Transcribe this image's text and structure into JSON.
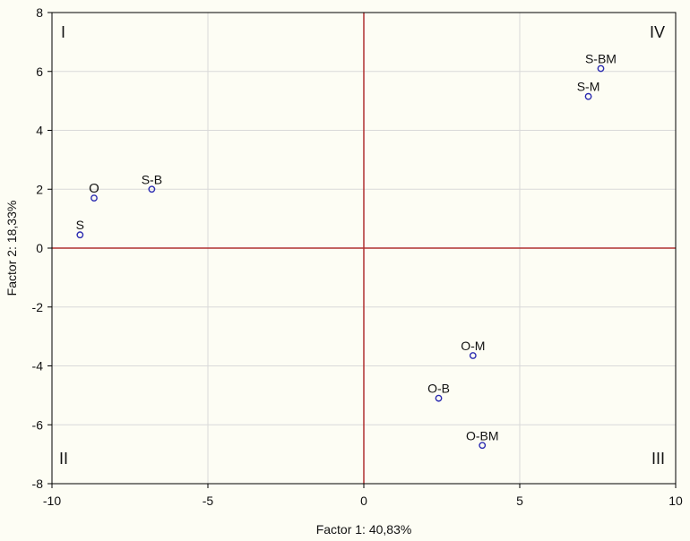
{
  "chart_data": {
    "type": "scatter",
    "xlabel": "Factor 1: 40,83%",
    "ylabel": "Factor 2: 18,33%",
    "xlim": [
      -10,
      10
    ],
    "ylim": [
      -8,
      8
    ],
    "x_ticks": [
      -10,
      -5,
      0,
      5,
      10
    ],
    "y_ticks": [
      -8,
      -6,
      -4,
      -2,
      0,
      2,
      4,
      6,
      8
    ],
    "grid": true,
    "reference_lines": {
      "x": 0,
      "y": 0,
      "color": "#b03030"
    },
    "points": [
      {
        "label": "S",
        "x": -9.1,
        "y": 0.45
      },
      {
        "label": "O",
        "x": -8.65,
        "y": 1.7
      },
      {
        "label": "S-B",
        "x": -6.8,
        "y": 2.0
      },
      {
        "label": "S-BM",
        "x": 7.6,
        "y": 6.1
      },
      {
        "label": "S-M",
        "x": 7.2,
        "y": 5.15
      },
      {
        "label": "O-M",
        "x": 3.5,
        "y": -3.65
      },
      {
        "label": "O-B",
        "x": 2.4,
        "y": -5.1
      },
      {
        "label": "O-BM",
        "x": 3.8,
        "y": -6.7
      }
    ],
    "quadrant_labels": [
      {
        "text": "I",
        "corner": "top-left"
      },
      {
        "text": "IV",
        "corner": "top-right"
      },
      {
        "text": "II",
        "corner": "bottom-left"
      },
      {
        "text": "III",
        "corner": "bottom-right"
      }
    ],
    "marker_color": "#2a2ab0",
    "background": "#fdfdf4"
  }
}
